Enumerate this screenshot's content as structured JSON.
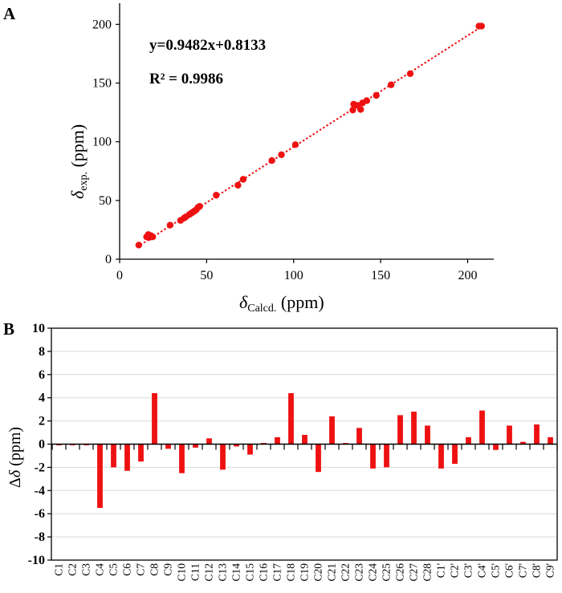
{
  "colors": {
    "marker": "#ee1111",
    "axis": "#000000",
    "grid": "#d9d9d9"
  },
  "chart_data": [
    {
      "type": "scatter",
      "panel_label": "A",
      "title": "",
      "xlabel_symbol": "δ",
      "xlabel_sub": "Calcd.",
      "xlabel_unit": " (ppm)",
      "ylabel_symbol": "δ",
      "ylabel_sub": "exp.",
      "ylabel_unit": " (ppm)",
      "xlim": [
        0,
        215
      ],
      "ylim": [
        0,
        218
      ],
      "xticks": [
        0,
        50,
        100,
        150,
        200
      ],
      "yticks": [
        0,
        50,
        100,
        150,
        200
      ],
      "equation": "y=0.9482x+0.8133",
      "r_squared": "R² = 0.9986",
      "fit": {
        "slope": 0.9482,
        "intercept": 0.8133,
        "x_range": [
          10,
          208
        ]
      },
      "points": [
        [
          11,
          12
        ],
        [
          15.5,
          19
        ],
        [
          16.5,
          21
        ],
        [
          17,
          18.5
        ],
        [
          18,
          20
        ],
        [
          19,
          19
        ],
        [
          29,
          29
        ],
        [
          35,
          33
        ],
        [
          37,
          35
        ],
        [
          38,
          36
        ],
        [
          40,
          38
        ],
        [
          41,
          39
        ],
        [
          42,
          40
        ],
        [
          43,
          41
        ],
        [
          44,
          42
        ],
        [
          45,
          44
        ],
        [
          46,
          45
        ],
        [
          55.5,
          54.5
        ],
        [
          68,
          63
        ],
        [
          71,
          68
        ],
        [
          87.5,
          84
        ],
        [
          93,
          89
        ],
        [
          101,
          97.5
        ],
        [
          134,
          127
        ],
        [
          134.5,
          132
        ],
        [
          136.5,
          131
        ],
        [
          138.5,
          127.5
        ],
        [
          139.5,
          133
        ],
        [
          142,
          135
        ],
        [
          147.5,
          139.5
        ],
        [
          156,
          148.5
        ],
        [
          167,
          158
        ],
        [
          206.5,
          198.5
        ],
        [
          208,
          198.5
        ]
      ]
    },
    {
      "type": "bar",
      "panel_label": "B",
      "title": "",
      "xlabel": "",
      "ylabel_prefix": "Δ",
      "ylabel_symbol": "δ",
      "ylabel_unit": " (ppm)",
      "ylim": [
        -10,
        10
      ],
      "yticks": [
        10,
        8,
        6,
        4,
        2,
        0,
        -2,
        -4,
        -6,
        -8,
        -10
      ],
      "categories": [
        "C1",
        "C2",
        "C3",
        "C4",
        "C5",
        "C6",
        "C7",
        "C8",
        "C9",
        "C10",
        "C11",
        "C12",
        "C13",
        "C14",
        "C15",
        "C16",
        "C17",
        "C18",
        "C19",
        "C20",
        "C21",
        "C22",
        "C23",
        "C24",
        "C25",
        "C26",
        "C27",
        "C28",
        "C1'",
        "C2'",
        "C3'",
        "C4'",
        "C5'",
        "C6'",
        "C7'",
        "C8'",
        "C9'"
      ],
      "values": [
        -0.1,
        -0.1,
        -0.1,
        -5.5,
        -2.0,
        -2.3,
        -1.5,
        4.4,
        -0.4,
        -2.5,
        -0.3,
        0.5,
        -2.2,
        -0.2,
        -0.9,
        0.1,
        0.6,
        4.4,
        0.8,
        -2.4,
        2.4,
        0.1,
        1.4,
        -2.1,
        -2.0,
        2.5,
        2.8,
        1.6,
        -2.1,
        -1.7,
        0.6,
        2.9,
        -0.5,
        1.6,
        0.2,
        1.7,
        0.6
      ]
    }
  ]
}
